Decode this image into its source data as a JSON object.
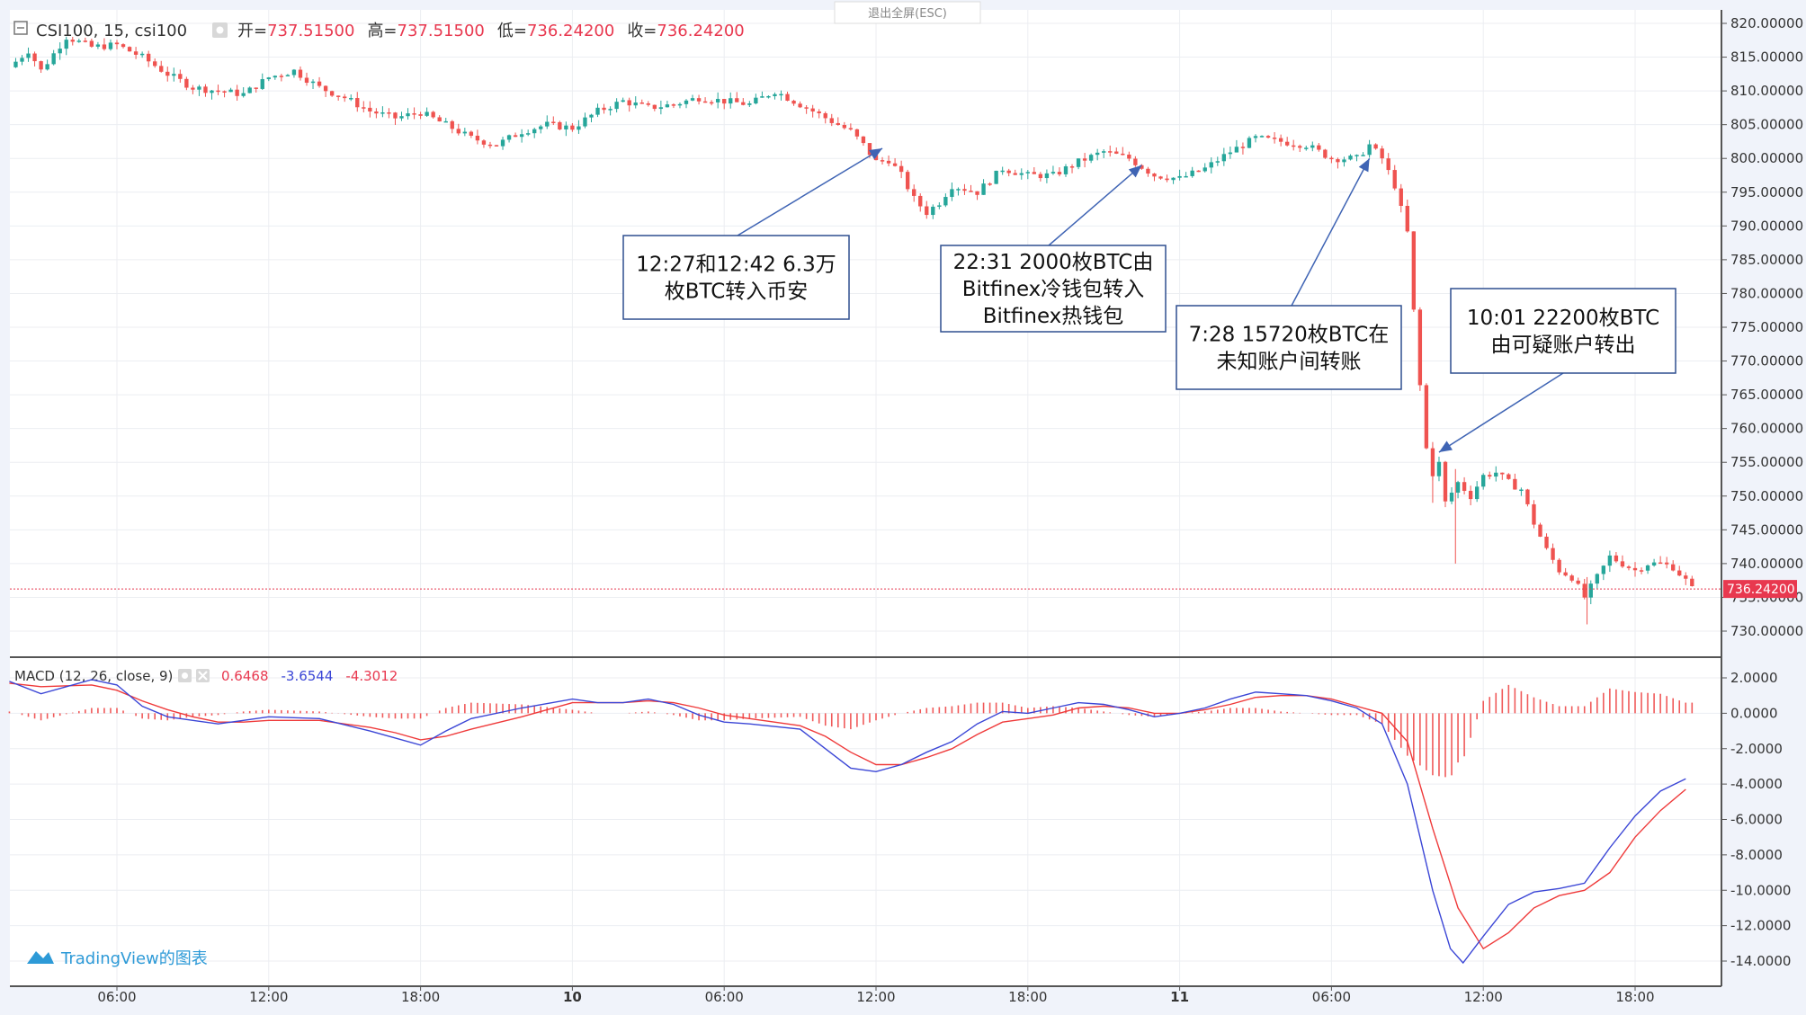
{
  "header": {
    "symbol": "CSI100, 15, csi100",
    "open_label": "开=",
    "open_value": "737.51500",
    "high_label": "高=",
    "high_value": "737.51500",
    "low_label": "低=",
    "low_value": "736.24200",
    "close_label": "收=",
    "close_value": "736.24200"
  },
  "exit_fullscreen": "退出全屏(ESC)",
  "branding": "TradingView的图表",
  "colors": {
    "up": "#26a69a",
    "down": "#ef5350",
    "macd": "#3b46d6",
    "signal": "#ef3a3a",
    "hist": "#f05a5a",
    "price_line": "#e8384f"
  },
  "chart_data": [
    {
      "type": "candlestick",
      "title": "CSI100, 15, csi100",
      "ylim": [
        728,
        822
      ],
      "y_ticks": [
        "820.00000",
        "815.00000",
        "810.00000",
        "805.00000",
        "800.00000",
        "795.00000",
        "790.00000",
        "785.00000",
        "780.00000",
        "775.00000",
        "770.00000",
        "765.00000",
        "760.00000",
        "755.00000",
        "750.00000",
        "745.00000",
        "740.00000",
        "735.00000",
        "730.00000"
      ],
      "y_tick_values": [
        820,
        815,
        810,
        805,
        800,
        795,
        790,
        785,
        780,
        775,
        770,
        765,
        760,
        755,
        750,
        745,
        740,
        735,
        730
      ],
      "x_labels": [
        "06:00",
        "12:00",
        "18:00",
        "10",
        "06:00",
        "12:00",
        "18:00",
        "11",
        "06:00",
        "12:00",
        "18:00"
      ],
      "x_label_bold": [
        false,
        false,
        false,
        true,
        false,
        false,
        false,
        true,
        false,
        false,
        false
      ],
      "x_label_hours": [
        6,
        12,
        18,
        24,
        30,
        36,
        42,
        48,
        54,
        60,
        66
      ],
      "hours_start": 1.75,
      "bar_hours": 0.25,
      "last_price": "736.24200",
      "last_price_value": 736.242,
      "price_path": [
        [
          1.75,
          813.5
        ],
        [
          2.5,
          816
        ],
        [
          3,
          813
        ],
        [
          4,
          818
        ],
        [
          5,
          816.5
        ],
        [
          6,
          816.8
        ],
        [
          7,
          815
        ],
        [
          8,
          812.5
        ],
        [
          9,
          810.5
        ],
        [
          10,
          810
        ],
        [
          11,
          809.5
        ],
        [
          12,
          812
        ],
        [
          13,
          813
        ],
        [
          14,
          810.5
        ],
        [
          15,
          809
        ],
        [
          16,
          807
        ],
        [
          17,
          806
        ],
        [
          18,
          806.8
        ],
        [
          19,
          805
        ],
        [
          20,
          803
        ],
        [
          21,
          802
        ],
        [
          22,
          804
        ],
        [
          23,
          805
        ],
        [
          24,
          804.5
        ],
        [
          25,
          807
        ],
        [
          26,
          808.5
        ],
        [
          27,
          807.5
        ],
        [
          28,
          808
        ],
        [
          29,
          809
        ],
        [
          30,
          808.5
        ],
        [
          31,
          808
        ],
        [
          32,
          810
        ],
        [
          33,
          808
        ],
        [
          34,
          806
        ],
        [
          35,
          804
        ],
        [
          35.5,
          802
        ],
        [
          36,
          799.5
        ],
        [
          36.5,
          799.8
        ],
        [
          37,
          797.5
        ],
        [
          37.5,
          794
        ],
        [
          38,
          792
        ],
        [
          38.5,
          793.5
        ],
        [
          39,
          796
        ],
        [
          40,
          795
        ],
        [
          41,
          798.5
        ],
        [
          42,
          797.5
        ],
        [
          43,
          797.5
        ],
        [
          44,
          799.5
        ],
        [
          45,
          801
        ],
        [
          46,
          800
        ],
        [
          47,
          797.5
        ],
        [
          48,
          797
        ],
        [
          49,
          798.5
        ],
        [
          50,
          801
        ],
        [
          51,
          803
        ],
        [
          52,
          802.5
        ],
        [
          53,
          802
        ],
        [
          54,
          800
        ],
        [
          55,
          800
        ],
        [
          55.5,
          802
        ],
        [
          56,
          800
        ],
        [
          56.5,
          796
        ],
        [
          57,
          789
        ],
        [
          57.3,
          775
        ],
        [
          57.6,
          762
        ],
        [
          57.9,
          752
        ],
        [
          58.2,
          756
        ],
        [
          58.5,
          749
        ],
        [
          59,
          752
        ],
        [
          59.5,
          750
        ],
        [
          60,
          753
        ],
        [
          60.5,
          753.5
        ],
        [
          61,
          752
        ],
        [
          61.5,
          751
        ],
        [
          62,
          746
        ],
        [
          62.5,
          742
        ],
        [
          63,
          739
        ],
        [
          63.5,
          738
        ],
        [
          64,
          735
        ],
        [
          64.5,
          738
        ],
        [
          65,
          741
        ],
        [
          65.5,
          740
        ],
        [
          66,
          739
        ],
        [
          66.5,
          740
        ],
        [
          67,
          740
        ],
        [
          67.5,
          739.5
        ],
        [
          68,
          737.5
        ],
        [
          68.25,
          736.24
        ]
      ]
    },
    {
      "type": "line",
      "title": "MACD (12, 26, close, 9)",
      "legend_values": [
        "0.6468",
        "-3.6544",
        "-4.3012"
      ],
      "ylim": [
        -14.8,
        2.8
      ],
      "y_ticks": [
        "2.0000",
        "0.0000",
        "-2.0000",
        "-4.0000",
        "-6.0000",
        "-8.0000",
        "-10.0000",
        "-12.0000",
        "-14.0000"
      ],
      "y_tick_values": [
        2,
        0,
        -2,
        -4,
        -6,
        -8,
        -10,
        -12,
        -14
      ],
      "macd_path": [
        [
          1.75,
          1.8
        ],
        [
          3,
          1.1
        ],
        [
          5,
          1.9
        ],
        [
          6,
          1.6
        ],
        [
          7,
          0.4
        ],
        [
          8,
          -0.2
        ],
        [
          9,
          -0.4
        ],
        [
          10,
          -0.6
        ],
        [
          11,
          -0.4
        ],
        [
          12,
          -0.2
        ],
        [
          14,
          -0.3
        ],
        [
          16,
          -1.0
        ],
        [
          17,
          -1.4
        ],
        [
          18,
          -1.8
        ],
        [
          19,
          -1.0
        ],
        [
          20,
          -0.3
        ],
        [
          22,
          0.3
        ],
        [
          24,
          0.8
        ],
        [
          25,
          0.6
        ],
        [
          26,
          0.6
        ],
        [
          27,
          0.8
        ],
        [
          28,
          0.5
        ],
        [
          29,
          -0.1
        ],
        [
          30,
          -0.5
        ],
        [
          31,
          -0.6
        ],
        [
          33,
          -0.9
        ],
        [
          34,
          -2.0
        ],
        [
          35,
          -3.1
        ],
        [
          36,
          -3.3
        ],
        [
          37,
          -2.9
        ],
        [
          38,
          -2.2
        ],
        [
          39,
          -1.6
        ],
        [
          40,
          -0.6
        ],
        [
          41,
          0.1
        ],
        [
          42,
          0.0
        ],
        [
          43,
          0.3
        ],
        [
          44,
          0.6
        ],
        [
          45,
          0.5
        ],
        [
          46,
          0.2
        ],
        [
          47,
          -0.2
        ],
        [
          48,
          0.0
        ],
        [
          49,
          0.3
        ],
        [
          50,
          0.8
        ],
        [
          51,
          1.2
        ],
        [
          52,
          1.1
        ],
        [
          53,
          1.0
        ],
        [
          54,
          0.7
        ],
        [
          55,
          0.3
        ],
        [
          56,
          -0.6
        ],
        [
          57,
          -4.0
        ],
        [
          58,
          -10.0
        ],
        [
          58.7,
          -13.3
        ],
        [
          59.2,
          -14.1
        ],
        [
          60,
          -12.6
        ],
        [
          61,
          -10.8
        ],
        [
          62,
          -10.1
        ],
        [
          63,
          -9.9
        ],
        [
          64,
          -9.6
        ],
        [
          65,
          -7.6
        ],
        [
          66,
          -5.8
        ],
        [
          67,
          -4.4
        ],
        [
          68,
          -3.7
        ]
      ],
      "signal_path": [
        [
          1.75,
          1.7
        ],
        [
          3,
          1.5
        ],
        [
          5,
          1.6
        ],
        [
          6,
          1.3
        ],
        [
          7,
          0.7
        ],
        [
          8,
          0.2
        ],
        [
          9,
          -0.2
        ],
        [
          10,
          -0.5
        ],
        [
          11,
          -0.5
        ],
        [
          12,
          -0.4
        ],
        [
          14,
          -0.4
        ],
        [
          16,
          -0.8
        ],
        [
          17,
          -1.1
        ],
        [
          18,
          -1.5
        ],
        [
          19,
          -1.3
        ],
        [
          20,
          -0.9
        ],
        [
          22,
          -0.2
        ],
        [
          24,
          0.6
        ],
        [
          25,
          0.6
        ],
        [
          26,
          0.6
        ],
        [
          27,
          0.7
        ],
        [
          28,
          0.6
        ],
        [
          29,
          0.3
        ],
        [
          30,
          -0.1
        ],
        [
          31,
          -0.3
        ],
        [
          33,
          -0.7
        ],
        [
          34,
          -1.3
        ],
        [
          35,
          -2.2
        ],
        [
          36,
          -2.9
        ],
        [
          37,
          -2.9
        ],
        [
          38,
          -2.5
        ],
        [
          39,
          -2.0
        ],
        [
          40,
          -1.2
        ],
        [
          41,
          -0.5
        ],
        [
          42,
          -0.3
        ],
        [
          43,
          -0.1
        ],
        [
          44,
          0.3
        ],
        [
          45,
          0.4
        ],
        [
          46,
          0.3
        ],
        [
          47,
          0.0
        ],
        [
          48,
          0.0
        ],
        [
          49,
          0.2
        ],
        [
          50,
          0.5
        ],
        [
          51,
          0.9
        ],
        [
          52,
          1.0
        ],
        [
          53,
          1.0
        ],
        [
          54,
          0.8
        ],
        [
          55,
          0.4
        ],
        [
          56,
          0.0
        ],
        [
          57,
          -1.6
        ],
        [
          58,
          -6.5
        ],
        [
          59,
          -11.0
        ],
        [
          60,
          -13.3
        ],
        [
          61,
          -12.4
        ],
        [
          62,
          -11.0
        ],
        [
          63,
          -10.3
        ],
        [
          64,
          -10.0
        ],
        [
          65,
          -9.0
        ],
        [
          66,
          -7.0
        ],
        [
          67,
          -5.5
        ],
        [
          68,
          -4.3
        ]
      ]
    }
  ],
  "annotations": [
    {
      "lines": [
        "12:27和12:42 6.3万",
        "枚BTC转入币安"
      ],
      "target_hour": 36.25,
      "target_price": 801.5
    },
    {
      "lines": [
        "22:31 2000枚BTC由",
        "Bitfinex冷钱包转入",
        "Bitfinex热钱包"
      ],
      "target_hour": 46.5,
      "target_price": 799
    },
    {
      "lines": [
        "7:28 15720枚BTC在",
        "未知账户间转账"
      ],
      "target_hour": 55.5,
      "target_price": 800
    },
    {
      "lines": [
        "10:01 22200枚BTC",
        "由可疑账户转出"
      ],
      "target_hour": 58.25,
      "target_price": 756.5
    }
  ]
}
